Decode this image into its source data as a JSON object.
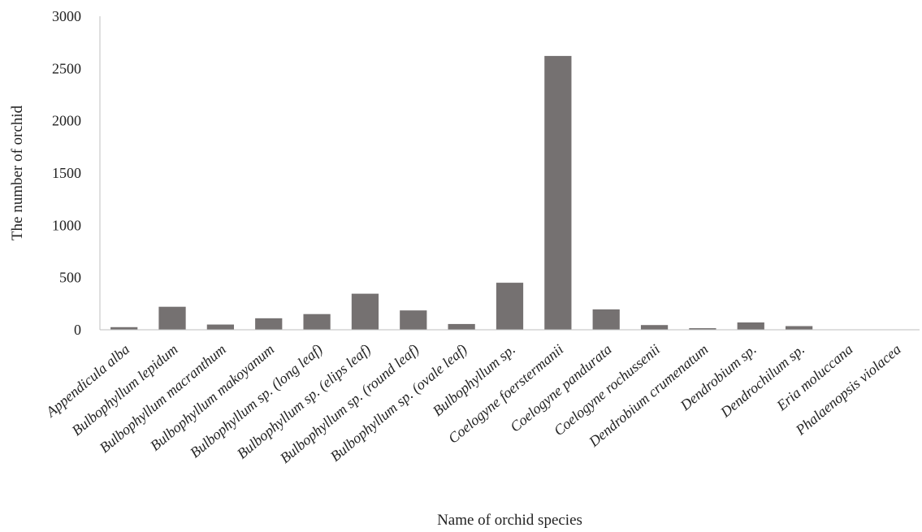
{
  "chart_data": {
    "type": "bar",
    "title": "",
    "xlabel": "Name of orchid species",
    "ylabel": "The number of orchid",
    "ylim": [
      0,
      3000
    ],
    "yticks": [
      0,
      500,
      1000,
      1500,
      2000,
      2500,
      3000
    ],
    "grid": false,
    "legend": "none",
    "bar_color": "#757171",
    "categories": [
      "Appendicula alba",
      "Bulbophyllum lepidum",
      "Bulbophyllum macranthum",
      "Bulbophyllum makoyanum",
      "Bulbophyllum sp. (long leaf)",
      "Bulbophyllum sp. (elips leaf)",
      "Bulbophyllum sp. (round leaf)",
      "Bulbophyllum sp. (ovale leaf)",
      "Bulbophyllum sp.",
      "Coelogyne foerstermanii",
      "Coelogyne pandurata",
      "Coelogyne rochussenii",
      "Dendrobium crumenatum",
      "Dendrobium sp.",
      "Dendrochilum sp.",
      "Eria moluccana",
      "Phalaenopsis violacea"
    ],
    "values": [
      25,
      220,
      50,
      110,
      150,
      345,
      185,
      55,
      450,
      2620,
      195,
      45,
      15,
      70,
      35,
      3,
      2
    ]
  }
}
